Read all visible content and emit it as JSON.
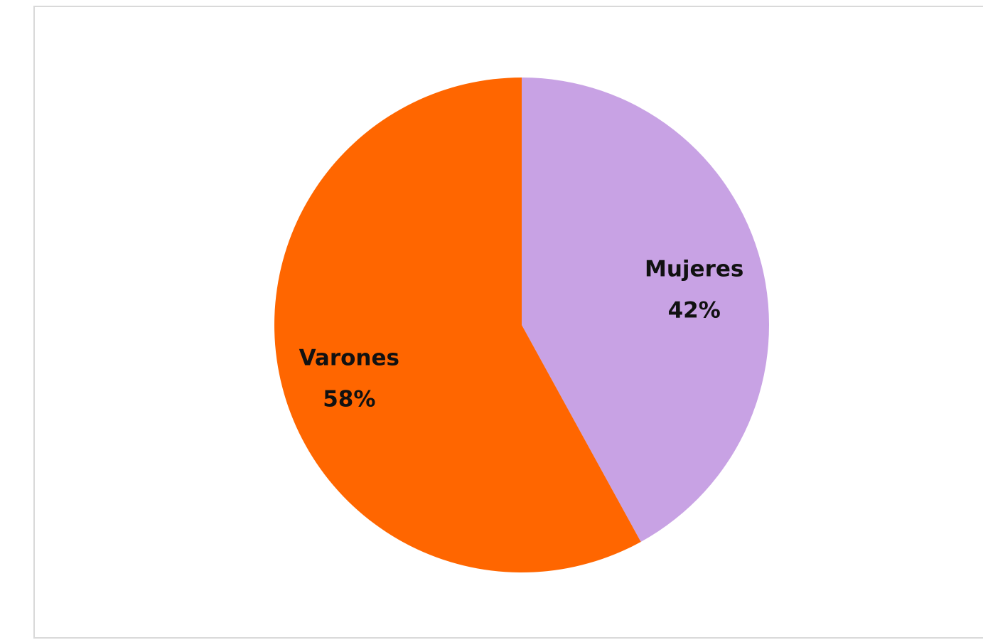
{
  "chart_data": {
    "type": "pie",
    "title": "",
    "start_angle_deg": 0,
    "direction": "clockwise",
    "slices": [
      {
        "label": "Mujeres",
        "value": 42,
        "value_label": "42%",
        "color": "#C8A2E4"
      },
      {
        "label": "Varones",
        "value": 58,
        "value_label": "58%",
        "color": "#FF6600"
      }
    ],
    "legend": "none",
    "data_labels": "inside"
  }
}
